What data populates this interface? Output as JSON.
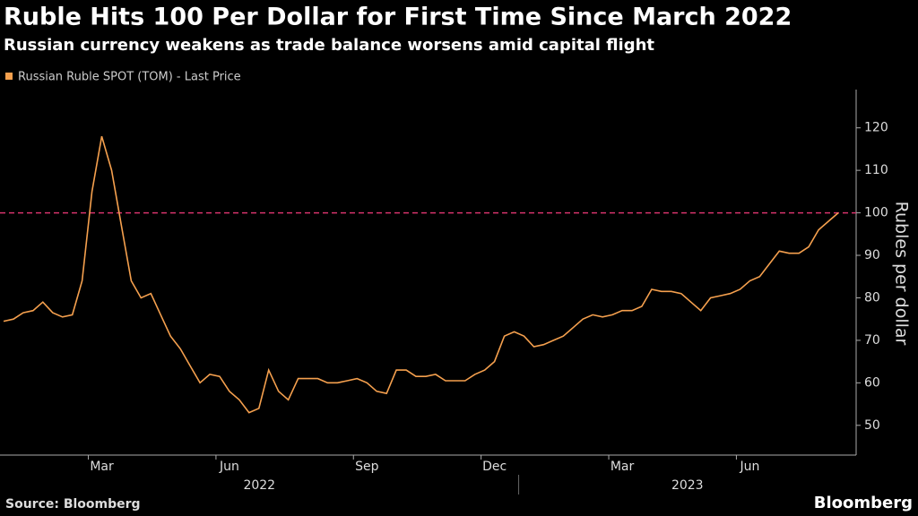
{
  "chart_data": {
    "type": "line",
    "title": "Ruble Hits 100 Per Dollar for First Time Since March 2022",
    "subtitle": "Russian currency weakens as trade balance worsens amid capital flight",
    "y_label": "Rubles per dollar",
    "source": "Source: Bloomberg",
    "brand": "Bloomberg",
    "categories": [
      null,
      null,
      null,
      null,
      null,
      null,
      null,
      null,
      null,
      null,
      "Mar",
      null,
      null,
      null,
      null,
      null,
      null,
      null,
      null,
      null,
      null,
      null,
      null,
      "Jun",
      null,
      null,
      null,
      null,
      null,
      null,
      null,
      null,
      null,
      null,
      null,
      null,
      null,
      "Sep",
      null,
      null,
      null,
      null,
      null,
      null,
      null,
      null,
      null,
      null,
      null,
      null,
      "Dec",
      null,
      null,
      null,
      null,
      null,
      null,
      null,
      null,
      null,
      null,
      null,
      null,
      "Mar",
      null,
      null,
      null,
      null,
      null,
      null,
      null,
      null,
      null,
      null,
      null,
      null,
      "Jun",
      null,
      null,
      null,
      null,
      null,
      null,
      null,
      null,
      null
    ],
    "year_labels": [
      "2022",
      "2023"
    ],
    "series": [
      {
        "name": "Russian Ruble SPOT (TOM) - Last Price",
        "color": "#f5a04e",
        "values": [
          74.5,
          75,
          76.5,
          77,
          79,
          76.5,
          75.5,
          76,
          84,
          105,
          118,
          110,
          97,
          84,
          80,
          81,
          76,
          71,
          68,
          64,
          60,
          62,
          61.5,
          58,
          56,
          53,
          54,
          63,
          58,
          56,
          61,
          61,
          61,
          60,
          60,
          60.5,
          61,
          60,
          58,
          57.5,
          63,
          63,
          61.5,
          61.5,
          62,
          60.5,
          60.5,
          60.5,
          62,
          63,
          65,
          71,
          72,
          71,
          68.5,
          69,
          70,
          71,
          73,
          75,
          76,
          75.5,
          76,
          77,
          77,
          78,
          82,
          81.5,
          81.5,
          81,
          79,
          77,
          80,
          80.5,
          81,
          82,
          84,
          85,
          88,
          91,
          90.5,
          90.5,
          92,
          96,
          98,
          100
        ]
      }
    ],
    "reference_line": {
      "value": 100,
      "color": "#d6336c"
    },
    "ylim": [
      43,
      129
    ],
    "yticks": [
      50,
      60,
      70,
      80,
      90,
      100,
      110,
      120
    ]
  }
}
